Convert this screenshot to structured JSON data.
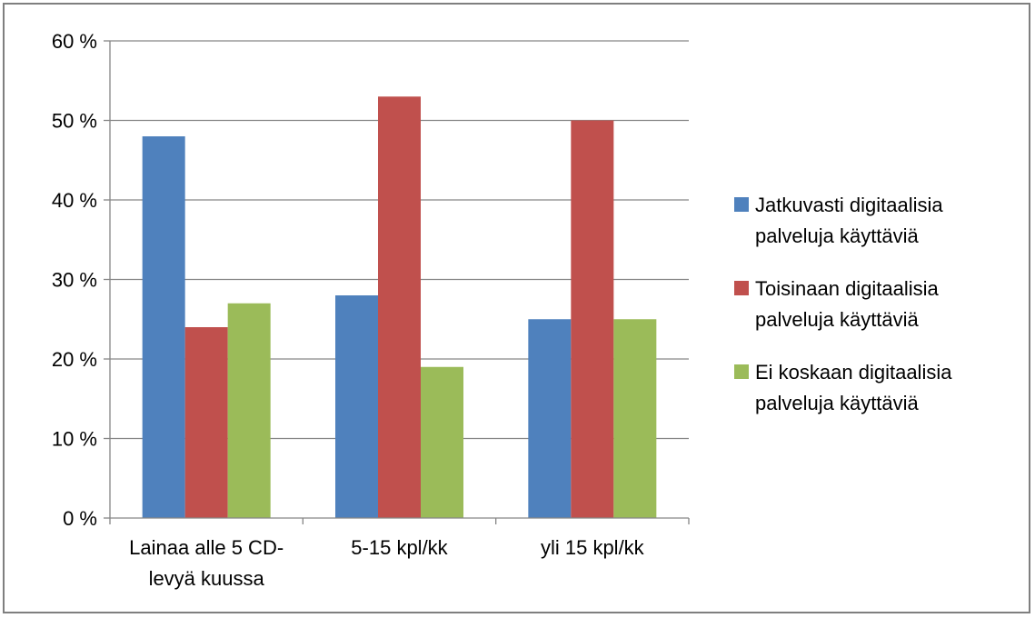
{
  "chart_data": {
    "type": "bar",
    "categories": [
      [
        "Lainaa alle 5 CD-",
        "levyä kuussa"
      ],
      [
        "5-15 kpl/kk"
      ],
      [
        "yli 15 kpl/kk"
      ]
    ],
    "y_tick_labels": [
      "0 %",
      "10 %",
      "20 %",
      "30 %",
      "40 %",
      "50 %",
      "60 %"
    ],
    "ylim": [
      0,
      60
    ],
    "grid": true,
    "legend_position": "right",
    "series": [
      {
        "name": [
          "Jatkuvasti  digitaalisia",
          "palveluja käyttäviä"
        ],
        "color": "#4f81bd",
        "values": [
          48,
          28,
          25
        ]
      },
      {
        "name": [
          "Toisinaan  digitaalisia",
          "palveluja käyttäviä"
        ],
        "color": "#c0504d",
        "values": [
          24,
          53,
          50
        ]
      },
      {
        "name": [
          "Ei koskaan digitaalisia",
          "palveluja käyttäviä"
        ],
        "color": "#9bbb59",
        "values": [
          27,
          19,
          25
        ]
      }
    ]
  }
}
